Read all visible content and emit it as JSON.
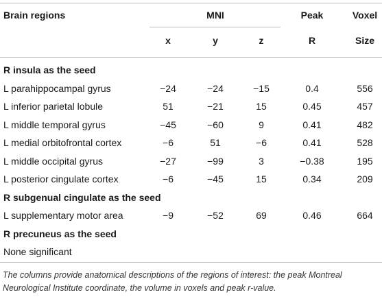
{
  "header": {
    "brain_regions": "Brain regions",
    "mni": "MNI",
    "peak": "Peak",
    "voxel": "Voxel",
    "x": "x",
    "y": "y",
    "z": "z",
    "r": "R",
    "size": "Size"
  },
  "sections": [
    {
      "title": "R insula as the seed",
      "rows": [
        {
          "region": "L parahippocampal gyrus",
          "x": "−24",
          "y": "−24",
          "z": "−15",
          "peak": "0.4",
          "size": "556"
        },
        {
          "region": "L inferior parietal lobule",
          "x": "51",
          "y": "−21",
          "z": "15",
          "peak": "0.45",
          "size": "457"
        },
        {
          "region": "L middle temporal gyrus",
          "x": "−45",
          "y": "−60",
          "z": "9",
          "peak": "0.41",
          "size": "482"
        },
        {
          "region": "L medial orbitofrontal cortex",
          "x": "−6",
          "y": "51",
          "z": "−6",
          "peak": "0.41",
          "size": "528"
        },
        {
          "region": "L middle occipital gyrus",
          "x": "−27",
          "y": "−99",
          "z": "3",
          "peak": "−0.38",
          "size": "195"
        },
        {
          "region": "L posterior cingulate cortex",
          "x": "−6",
          "y": "−45",
          "z": "15",
          "peak": "0.34",
          "size": "209"
        }
      ]
    },
    {
      "title": "R subgenual cingulate as the seed",
      "rows": [
        {
          "region": "L supplementary motor area",
          "x": "−9",
          "y": "−52",
          "z": "69",
          "peak": "0.46",
          "size": "664"
        }
      ]
    },
    {
      "title": "R precuneus as the seed",
      "rows": [
        {
          "region": "None significant",
          "x": "",
          "y": "",
          "z": "",
          "peak": "",
          "size": ""
        }
      ]
    }
  ],
  "footnote": "The columns provide anatomical descriptions of the regions of interest: the peak Montreal Neurological Institute coordinate, the volume in voxels and peak r-value."
}
